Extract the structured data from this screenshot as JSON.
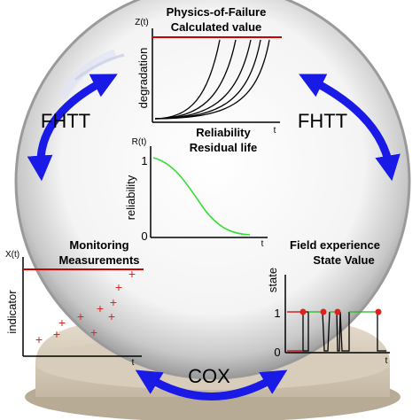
{
  "arrows": {
    "left_label": "FHTT",
    "right_label": "FHTT",
    "bottom_label": "COX",
    "color": "#1a1ae6"
  },
  "physics_panel": {
    "title_line1": "Physics-of-Failure",
    "title_line2": "Calculated value",
    "y_axis_name": "Z(t)",
    "y_label": "degradation",
    "x_axis_name": "t",
    "threshold_color": "#cc0000"
  },
  "reliability_panel": {
    "title_line1": "Reliability",
    "title_line2": "Residual life",
    "y_axis_name": "R(t)",
    "y_label": "reliability",
    "x_axis_name": "t",
    "tick_top": "1",
    "tick_bottom": "0",
    "curve_color": "#33dd33"
  },
  "monitoring_panel": {
    "title_line1": "Monitoring",
    "title_line2": "Measurements",
    "y_axis_name": "X(t)",
    "y_label": "indicator",
    "x_axis_name": "t",
    "threshold_color": "#cc0000",
    "marker_color": "#dd2222"
  },
  "field_panel": {
    "title_line1": "Field experience",
    "title_line2": "State Value",
    "y_label": "state",
    "x_axis_name": "t",
    "tick_top": "1",
    "tick_bottom": "0"
  }
}
